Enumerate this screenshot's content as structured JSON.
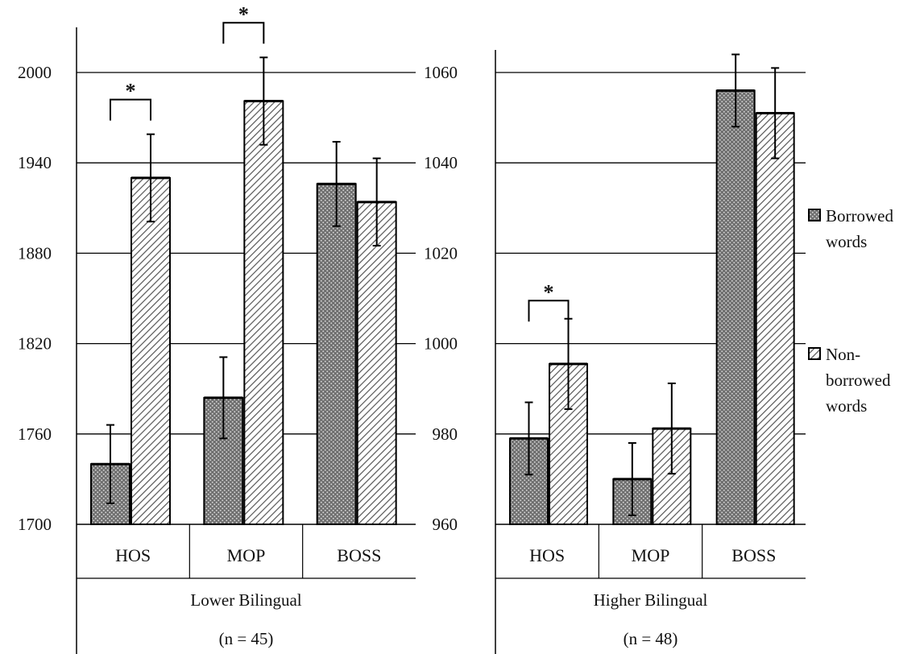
{
  "chart_data": [
    {
      "type": "bar",
      "group_label": "Lower Bilingual",
      "n_label": "(n = 45)",
      "categories": [
        "HOS",
        "MOP",
        "BOSS"
      ],
      "series": [
        {
          "name": "Borrowed words",
          "values": [
            1740,
            1784,
            1926
          ],
          "error": [
            26,
            27,
            28
          ]
        },
        {
          "name": "Non-borrowed words",
          "values": [
            1930,
            1981,
            1914
          ],
          "error": [
            29,
            29,
            29
          ]
        }
      ],
      "ylim": [
        1700,
        2030
      ],
      "yticks": [
        1700,
        1760,
        1820,
        1880,
        1940,
        2000
      ],
      "significance": [
        {
          "category": "HOS",
          "label": "*",
          "y": 1982
        },
        {
          "category": "MOP",
          "label": "*",
          "y": 2033
        }
      ],
      "grid": true
    },
    {
      "type": "bar",
      "group_label": "Higher Bilingual",
      "n_label": "(n = 48)",
      "categories": [
        "HOS",
        "MOP",
        "BOSS"
      ],
      "series": [
        {
          "name": "Borrowed words",
          "values": [
            979,
            970,
            1056
          ],
          "error": [
            8,
            8,
            8
          ]
        },
        {
          "name": "Non-borrowed words",
          "values": [
            995.5,
            981.2,
            1051
          ],
          "error": [
            10,
            10,
            10
          ]
        }
      ],
      "ylim": [
        960,
        1065
      ],
      "yticks": [
        960,
        980,
        1000,
        1020,
        1040,
        1060
      ],
      "significance": [
        {
          "category": "HOS",
          "label": "*",
          "y": 1009.5
        }
      ],
      "grid": true
    }
  ],
  "legend": {
    "placement": "right",
    "items": [
      {
        "label_lines": [
          "Borrowed",
          "words"
        ],
        "pattern": "dots"
      },
      {
        "label_lines": [
          "Non-",
          "borrowed",
          "words"
        ],
        "pattern": "hatch"
      }
    ]
  }
}
